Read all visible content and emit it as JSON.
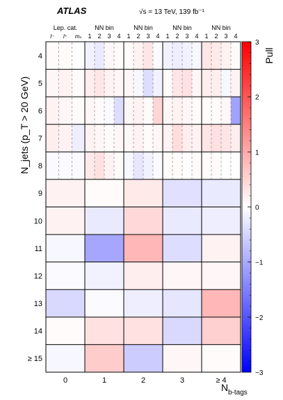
{
  "chart_data": {
    "type": "heatmap",
    "experiment_label": "ATLAS",
    "energy_label": "√s = 13 TeV, 139 fb⁻¹",
    "xlabel_main": "N",
    "xlabel_sub": "b-tags",
    "ylabel": "N_jets (p_T > 20 GeV)",
    "colorbar_label": "Pull",
    "zlim": [
      -3,
      3
    ],
    "colorbar_ticks": [
      "3",
      "2",
      "1",
      "0",
      "−1",
      "−2",
      "−3"
    ],
    "x_categories": [
      "0",
      "1",
      "2",
      "3",
      "≥ 4"
    ],
    "y_categories": [
      "4",
      "5",
      "6",
      "7",
      "8",
      "9",
      "10",
      "11",
      "12",
      "13",
      "14",
      "≥ 15"
    ],
    "sub_headers": {
      "lep_cat": "Lep. cat.",
      "nn_bin": "NN bin",
      "lep_labels": [
        "l⁻",
        "l⁺",
        "mₛ"
      ],
      "nn_labels": [
        "1",
        "2",
        "3",
        "4"
      ]
    },
    "fine_rows_by_nbtag": [
      [
        [
          0.05,
          0.05,
          0.0
        ],
        [
          0.1,
          0.15,
          0.05
        ],
        [
          0.15,
          0.1,
          0.05
        ],
        [
          0.2,
          0.15,
          -0.2
        ],
        [
          -0.05,
          -0.05,
          -0.05
        ]
      ],
      [
        [
          -0.15,
          -0.25,
          0.1,
          0.05
        ],
        [
          0.2,
          0.3,
          0.15,
          0.1
        ],
        [
          0.1,
          0.05,
          -0.05,
          -0.4
        ],
        [
          0.15,
          0.1,
          0.05,
          0.1
        ],
        [
          0.25,
          0.35,
          0.15,
          0.05
        ]
      ],
      [
        [
          0.05,
          0.15,
          0.3,
          -0.05
        ],
        [
          0.1,
          -0.1,
          -0.4,
          -0.15
        ],
        [
          0.1,
          0.15,
          0.05,
          0.5
        ],
        [
          0.1,
          0.15,
          0.05,
          0.1
        ],
        [
          -0.1,
          -0.3,
          -0.15,
          -0.05
        ]
      ],
      [
        [
          -0.15,
          -0.2,
          -0.15,
          -0.1
        ],
        [
          0.05,
          0.3,
          0.35,
          0.1
        ],
        [
          0.1,
          0.15,
          0.1,
          0.05
        ],
        [
          0.15,
          0.4,
          0.2,
          0.15
        ],
        [
          0.05,
          0.05,
          0.0,
          0.05
        ]
      ],
      [
        [
          0.3,
          0.25,
          0.15,
          0.05
        ],
        [
          0.2,
          0.2,
          -0.1,
          0.15
        ],
        [
          0.05,
          0.05,
          0.1,
          -1.1
        ],
        [
          0.3,
          0.35,
          0.3,
          0.2
        ],
        [
          0.05,
          0.05,
          0.0,
          0.0
        ]
      ]
    ],
    "coarse_values": [
      [
        0.15,
        0.05,
        0.25,
        -0.35,
        -0.25
      ],
      [
        0.15,
        -0.25,
        0.45,
        -0.25,
        -0.2
      ],
      [
        -0.1,
        -1.05,
        0.85,
        -0.4,
        0.15
      ],
      [
        -0.05,
        -0.15,
        0.2,
        0.1,
        0.1
      ],
      [
        -0.45,
        -0.05,
        -0.2,
        -0.3,
        0.85
      ],
      [
        0.05,
        0.35,
        0.35,
        -0.45,
        0.55
      ],
      [
        -0.1,
        0.6,
        -0.6,
        0.1,
        0.05
      ]
    ]
  }
}
